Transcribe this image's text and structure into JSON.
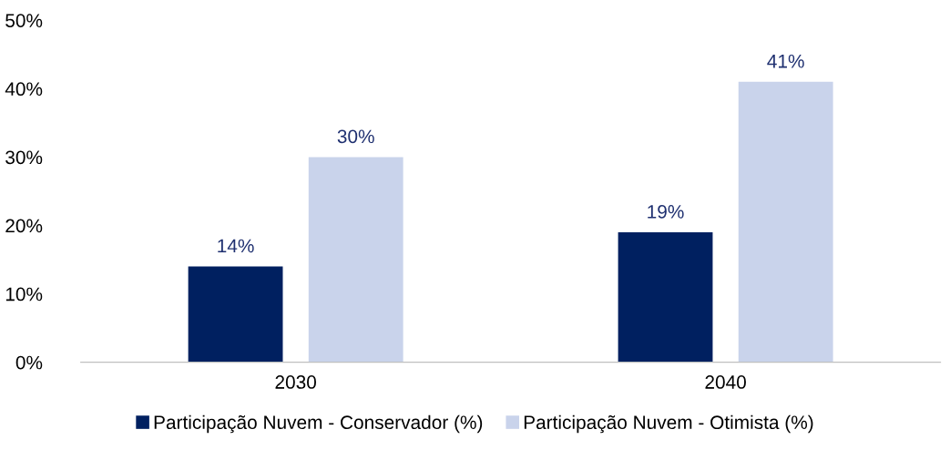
{
  "chart_data": {
    "type": "bar",
    "categories": [
      "2030",
      "2040"
    ],
    "series": [
      {
        "name": "Participação Nuvem - Conservador (%)",
        "color": "#002060",
        "values": [
          14,
          19
        ],
        "value_labels": [
          "14%",
          "19%"
        ]
      },
      {
        "name": "Participação Nuvem - Otimista (%)",
        "color": "#c9d3eb",
        "values": [
          30,
          41
        ],
        "value_labels": [
          "30%",
          "41%"
        ]
      }
    ],
    "ylim": [
      0,
      50
    ],
    "yticks": [
      {
        "value": 0,
        "label": "0%"
      },
      {
        "value": 10,
        "label": "10%"
      },
      {
        "value": 20,
        "label": "20%"
      },
      {
        "value": 30,
        "label": "30%"
      },
      {
        "value": 40,
        "label": "40%"
      },
      {
        "value": 50,
        "label": "50%"
      }
    ],
    "grid": false,
    "legend": "bottom"
  }
}
